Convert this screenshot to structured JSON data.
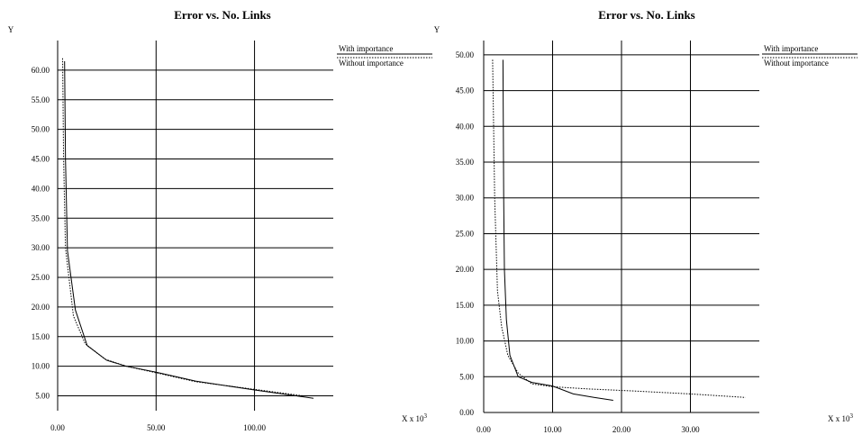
{
  "chart_data": [
    {
      "type": "line",
      "title": "Error vs. No. Links",
      "ylabel": "Y",
      "xlabel": "X x 10",
      "xlabel_exponent": "3",
      "xlim": [
        0,
        140
      ],
      "ylim": [
        2.5,
        65
      ],
      "xticks": [
        0,
        50,
        100
      ],
      "xtick_labels": [
        "0.00",
        "50.00",
        "100.00"
      ],
      "yticks": [
        5,
        10,
        15,
        20,
        25,
        30,
        35,
        40,
        45,
        50,
        55,
        60
      ],
      "ytick_labels": [
        "5.00",
        "10.00",
        "15.00",
        "20.00",
        "25.00",
        "30.00",
        "35.00",
        "40.00",
        "45.00",
        "50.00",
        "55.00",
        "60.00"
      ],
      "grid": true,
      "legend_position": "top-right",
      "series": [
        {
          "name": "With importance",
          "style": "solid",
          "x": [
            3.5,
            4.0,
            5.0,
            9.0,
            15.0,
            25.0,
            35.0,
            50.0,
            70.0,
            100.0,
            130.0
          ],
          "y": [
            61.5,
            45.0,
            29.5,
            19.5,
            13.5,
            11.0,
            10.0,
            9.0,
            7.5,
            6.0,
            4.6
          ]
        },
        {
          "name": "Without importance",
          "style": "dotted",
          "x": [
            2.5,
            3.0,
            4.0,
            8.0,
            14.0,
            24.0,
            35.0,
            50.0,
            70.0,
            100.0,
            125.0
          ],
          "y": [
            62.0,
            45.0,
            30.0,
            18.5,
            13.8,
            11.2,
            10.0,
            8.9,
            7.4,
            6.1,
            5.0
          ]
        }
      ]
    },
    {
      "type": "line",
      "title": "Error vs. No. Links",
      "ylabel": "Y",
      "xlabel": "X x 10",
      "xlabel_exponent": "3",
      "xlim": [
        0,
        40
      ],
      "ylim": [
        0,
        52
      ],
      "xticks": [
        0,
        10,
        20,
        30
      ],
      "xtick_labels": [
        "0.00",
        "10.00",
        "20.00",
        "30.00"
      ],
      "yticks": [
        0,
        5,
        10,
        15,
        20,
        25,
        30,
        35,
        40,
        45,
        50
      ],
      "ytick_labels": [
        "0.00",
        "5.00",
        "10.00",
        "15.00",
        "20.00",
        "25.00",
        "30.00",
        "35.00",
        "40.00",
        "45.00",
        "50.00"
      ],
      "grid": true,
      "legend_position": "top-right",
      "series": [
        {
          "name": "With importance",
          "style": "solid",
          "x": [
            2.8,
            2.9,
            3.0,
            3.3,
            3.8,
            5.0,
            7.0,
            10.0,
            13.0,
            16.0,
            18.8
          ],
          "y": [
            49.3,
            30.0,
            20.0,
            13.0,
            8.0,
            5.0,
            4.2,
            3.7,
            2.6,
            2.1,
            1.7
          ],
          "note": ""
        },
        {
          "name": "Without importance",
          "style": "dotted",
          "x": [
            1.3,
            1.6,
            2.0,
            2.6,
            3.5,
            5.0,
            7.0,
            10.0,
            15.0,
            22.0,
            30.0,
            38.0
          ],
          "y": [
            49.3,
            30.0,
            17.0,
            12.0,
            8.0,
            5.5,
            4.0,
            3.6,
            3.3,
            3.0,
            2.6,
            2.1
          ]
        }
      ]
    }
  ]
}
